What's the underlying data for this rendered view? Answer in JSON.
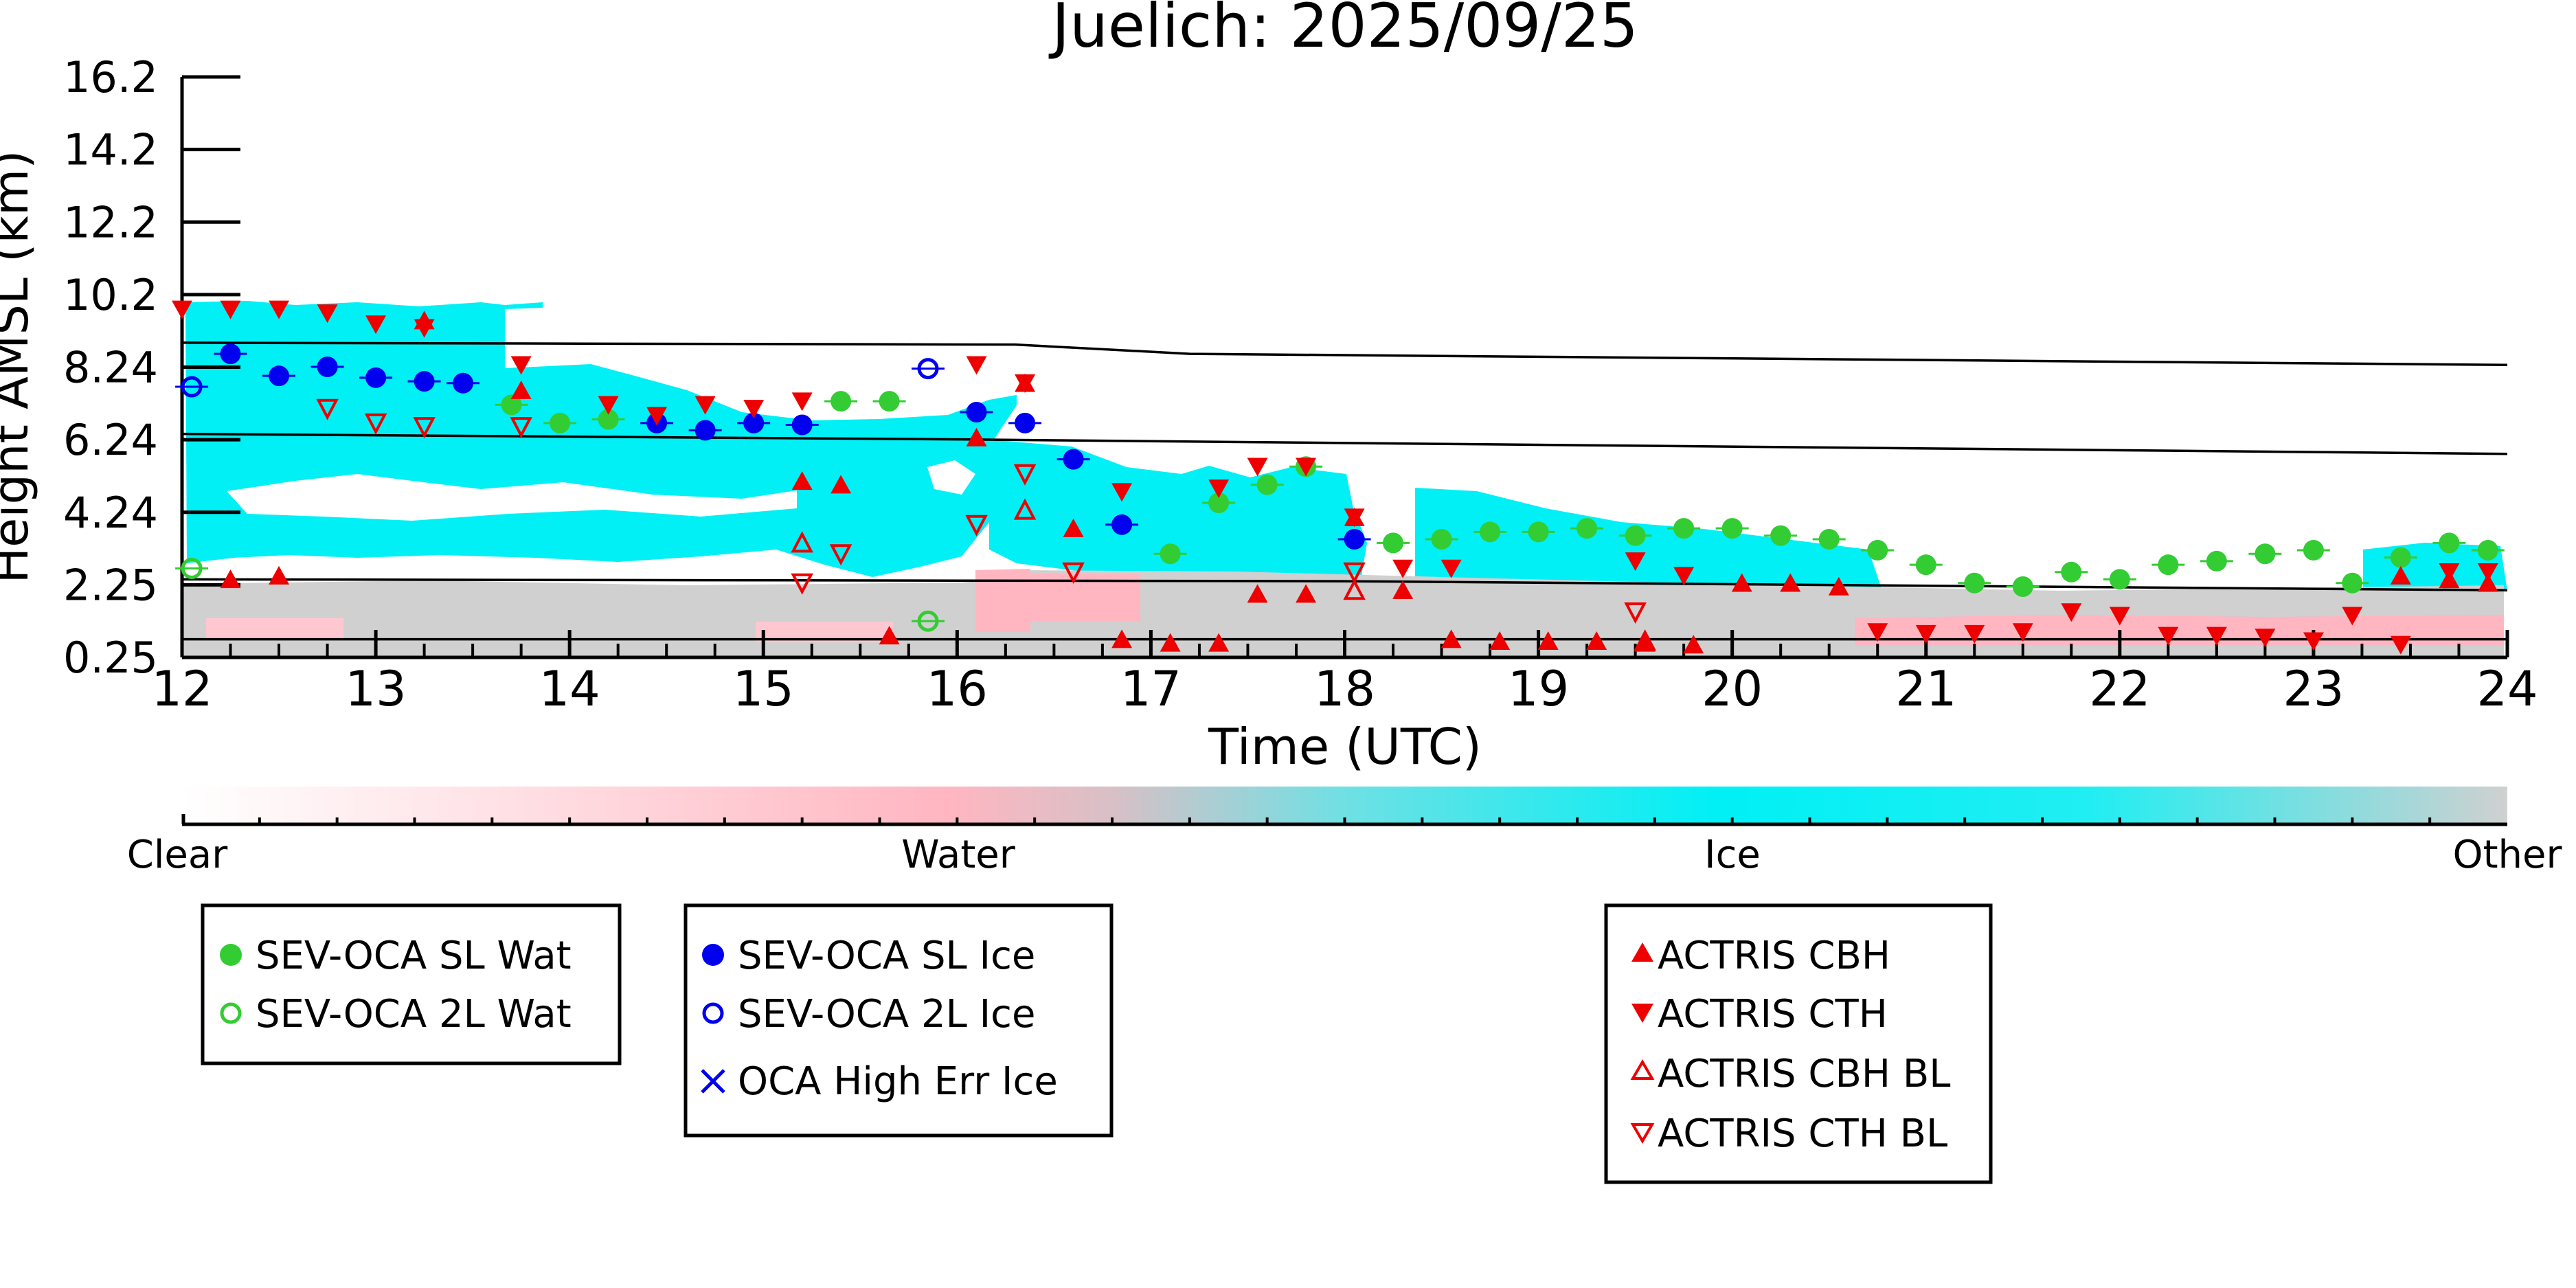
{
  "chart_data": {
    "type": "scatter",
    "title": "Juelich: 2025/09/25",
    "xlabel": "Time (UTC)",
    "ylabel": "Height AMSL (km)",
    "xlim": [
      12,
      24
    ],
    "ylim": [
      0.25,
      16.2
    ],
    "x_ticks": [
      "12",
      "13",
      "14",
      "15",
      "16",
      "17",
      "18",
      "19",
      "20",
      "21",
      "22",
      "23",
      "24"
    ],
    "y_ticks": [
      "0.25",
      "2.25",
      "4.24",
      "6.24",
      "8.24",
      "10.2",
      "12.2",
      "14.2",
      "16.2"
    ],
    "colorbar": {
      "labels": [
        "Clear",
        "Water",
        "Ice",
        "Other"
      ],
      "colors": [
        "#ffffff",
        "#ffb6c1",
        "#00f0f5",
        "#d0d0d0"
      ]
    },
    "reference_lines": [
      {
        "x": [
          12,
          16.3,
          17.2,
          24
        ],
        "y": [
          8.9,
          8.85,
          8.6,
          8.3
        ]
      },
      {
        "x": [
          12,
          16,
          24
        ],
        "y": [
          6.4,
          6.25,
          5.85
        ]
      },
      {
        "x": [
          12,
          18,
          24
        ],
        "y": [
          2.4,
          2.35,
          2.1
        ]
      },
      {
        "x": [
          12,
          24
        ],
        "y": [
          0.75,
          0.75
        ]
      }
    ],
    "series": [
      {
        "name": "SEV-OCA SL Wat",
        "marker": "filled-circle",
        "color": "#33cc33",
        "x": [
          13.7,
          13.95,
          14.2,
          15.4,
          15.65,
          17.1,
          17.35,
          17.6,
          17.8,
          18.25,
          18.5,
          18.75,
          19.0,
          19.25,
          19.5,
          19.75,
          20.0,
          20.25,
          20.5,
          20.75,
          21.0,
          21.25,
          21.5,
          21.75,
          22.0,
          22.25,
          22.5,
          22.75,
          23.0,
          23.2,
          23.45,
          23.7,
          23.9
        ],
        "y": [
          7.2,
          6.7,
          6.8,
          7.3,
          7.3,
          3.1,
          4.5,
          5.0,
          5.5,
          3.4,
          3.5,
          3.7,
          3.7,
          3.8,
          3.6,
          3.8,
          3.8,
          3.6,
          3.5,
          3.2,
          2.8,
          2.3,
          2.2,
          2.6,
          2.4,
          2.8,
          2.9,
          3.1,
          3.2,
          2.3,
          3.0,
          3.4,
          3.2
        ]
      },
      {
        "name": "SEV-OCA 2L Wat",
        "marker": "open-circle",
        "color": "#33cc33",
        "x": [
          12.05,
          15.85
        ],
        "y": [
          2.7,
          1.25
        ]
      },
      {
        "name": "SEV-OCA SL Ice",
        "marker": "filled-circle",
        "color": "#0000ee",
        "x": [
          12.25,
          12.5,
          12.75,
          13.0,
          13.25,
          13.45,
          14.45,
          14.7,
          14.95,
          15.2,
          16.1,
          16.35,
          16.6,
          16.85,
          18.05
        ],
        "y": [
          8.6,
          8.0,
          8.25,
          7.95,
          7.85,
          7.8,
          6.7,
          6.5,
          6.7,
          6.65,
          7.0,
          6.7,
          5.7,
          3.9,
          3.5
        ]
      },
      {
        "name": "SEV-OCA 2L Ice",
        "marker": "open-circle",
        "color": "#0000ee",
        "x": [
          12.05,
          15.85
        ],
        "y": [
          7.7,
          8.2
        ]
      },
      {
        "name": "OCA High Err Ice",
        "marker": "x",
        "color": "#0000ee",
        "x": [],
        "y": []
      },
      {
        "name": "ACTRIS CBH",
        "marker": "filled-triangle-up",
        "color": "#ee0000",
        "x": [
          12.25,
          12.5,
          13.25,
          13.75,
          15.2,
          15.4,
          15.65,
          16.1,
          16.35,
          16.6,
          16.85,
          17.1,
          17.35,
          17.55,
          17.8,
          18.05,
          18.3,
          18.55,
          18.8,
          19.05,
          19.3,
          19.55,
          19.8,
          20.05,
          20.3,
          20.55,
          23.45,
          23.7,
          23.9
        ],
        "y": [
          2.4,
          2.5,
          9.5,
          7.6,
          5.1,
          5.0,
          0.85,
          6.3,
          7.8,
          3.8,
          0.75,
          0.65,
          0.65,
          2.0,
          2.0,
          4.1,
          2.1,
          0.75,
          0.7,
          0.7,
          0.7,
          0.65,
          0.6,
          2.3,
          2.3,
          2.2,
          2.5,
          2.4,
          2.3
        ]
      },
      {
        "name": "ACTRIS CTH",
        "marker": "filled-triangle-down",
        "color": "#ee0000",
        "x": [
          12.0,
          12.25,
          12.5,
          12.75,
          13.0,
          13.25,
          13.75,
          14.2,
          14.45,
          14.7,
          14.95,
          15.2,
          16.1,
          16.35,
          16.85,
          17.35,
          17.55,
          17.8,
          18.05,
          18.3,
          18.55,
          19.5,
          19.75,
          20.75,
          21.0,
          21.25,
          21.5,
          21.75,
          22.0,
          22.25,
          22.5,
          22.75,
          23.0,
          23.2,
          23.45,
          23.7,
          23.9
        ],
        "y": [
          9.8,
          9.8,
          9.8,
          9.7,
          9.4,
          9.3,
          8.3,
          7.2,
          6.9,
          7.2,
          7.1,
          7.3,
          8.3,
          7.8,
          4.8,
          4.9,
          5.5,
          5.5,
          4.1,
          2.7,
          2.7,
          2.9,
          2.5,
          0.95,
          0.9,
          0.9,
          0.95,
          1.5,
          1.4,
          0.85,
          0.85,
          0.8,
          0.7,
          1.4,
          0.6,
          2.6,
          2.6
        ]
      },
      {
        "name": "ACTRIS CBH BL",
        "marker": "open-triangle-up",
        "color": "#ee0000",
        "x": [
          15.2,
          16.35,
          18.05,
          19.55
        ],
        "y": [
          3.4,
          4.3,
          2.1,
          0.7
        ]
      },
      {
        "name": "ACTRIS CTH BL",
        "marker": "open-triangle-down",
        "color": "#ee0000",
        "x": [
          12.75,
          13.0,
          13.25,
          13.75,
          15.2,
          15.4,
          16.1,
          16.35,
          16.6,
          18.05,
          19.5
        ],
        "y": [
          7.1,
          6.7,
          6.6,
          6.6,
          2.3,
          3.1,
          3.9,
          5.3,
          2.6,
          2.6,
          1.5
        ]
      }
    ],
    "legends": [
      [
        "SEV-OCA SL Wat",
        "SEV-OCA 2L Wat"
      ],
      [
        "SEV-OCA SL Ice",
        "SEV-OCA 2L Ice",
        "OCA High Err Ice"
      ],
      [
        "ACTRIS CBH",
        "ACTRIS CTH",
        "ACTRIS CBH BL",
        "ACTRIS CTH BL"
      ]
    ],
    "colors": {
      "wat": "#33cc33",
      "ice": "#0000ee",
      "actris": "#ee0000",
      "cloud_ice": "#00f0f5",
      "cloud_water": "#ffb6c1",
      "cloud_other": "#d0d0d0"
    }
  }
}
